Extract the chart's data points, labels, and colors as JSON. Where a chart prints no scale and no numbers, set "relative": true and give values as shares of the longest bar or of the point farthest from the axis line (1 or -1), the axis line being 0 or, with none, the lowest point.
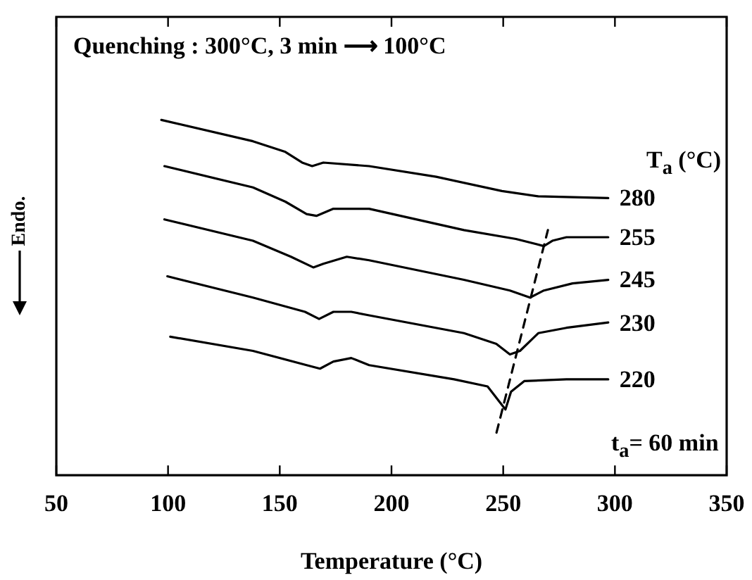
{
  "chart_data": {
    "type": "line",
    "relative": true,
    "title": "Quenching : 300°C, 3 min ⟶ 100°C",
    "xlabel": "Temperature (°C)",
    "ylabel": "Endo.",
    "legend_title": "T$_{a}$ (°C)",
    "annotations": [
      "t$_{a}$= 60 min"
    ],
    "xlim": [
      50,
      350
    ],
    "xticks": [
      50,
      100,
      150,
      200,
      250,
      300,
      350
    ],
    "grid": false,
    "legend": false,
    "marker": "none",
    "line_style": "solid",
    "series": [
      {
        "name": "280",
        "color": "#000000",
        "x": [
          97,
          138,
          152.5,
          160,
          164.5,
          169.5,
          190,
          220,
          249.4,
          265.7,
          297
        ],
        "values": [
          1.0,
          0.94,
          0.91,
          0.88,
          0.87,
          0.88,
          0.87,
          0.84,
          0.8,
          0.785,
          0.78
        ]
      },
      {
        "name": "255",
        "color": "#000000",
        "x": [
          98.4,
          138,
          152.5,
          162,
          166.4,
          174,
          190,
          232.4,
          255.7,
          268.2,
          272,
          278.3,
          297
        ],
        "values": [
          0.87,
          0.81,
          0.77,
          0.735,
          0.73,
          0.75,
          0.75,
          0.69,
          0.665,
          0.645,
          0.66,
          0.67,
          0.67
        ]
      },
      {
        "name": "245",
        "color": "#000000",
        "x": [
          98.4,
          138,
          155,
          165,
          169.5,
          180,
          190,
          232.4,
          253,
          262,
          268.2,
          281,
          297
        ],
        "values": [
          0.72,
          0.66,
          0.615,
          0.585,
          0.595,
          0.615,
          0.605,
          0.55,
          0.52,
          0.5,
          0.52,
          0.54,
          0.55
        ]
      },
      {
        "name": "230",
        "color": "#000000",
        "x": [
          99.7,
          138,
          161.3,
          167.6,
          174,
          182,
          190,
          232.4,
          246.9,
          253,
          257.5,
          265.7,
          278.3,
          297
        ],
        "values": [
          0.56,
          0.5,
          0.46,
          0.44,
          0.46,
          0.46,
          0.45,
          0.4,
          0.37,
          0.34,
          0.35,
          0.4,
          0.415,
          0.43
        ]
      },
      {
        "name": "220",
        "color": "#000000",
        "x": [
          101,
          138,
          162,
          168,
          174,
          182,
          190,
          228,
          243,
          251,
          253.5,
          259.4,
          278.3,
          297
        ],
        "values": [
          0.39,
          0.35,
          0.31,
          0.3,
          0.32,
          0.33,
          0.31,
          0.27,
          0.25,
          0.185,
          0.235,
          0.265,
          0.27,
          0.27
        ]
      },
      {
        "color": "#000000",
        "line_style": "dashed",
        "x": [
          247,
          270
        ],
        "values": [
          0.12,
          0.69
        ]
      }
    ]
  }
}
